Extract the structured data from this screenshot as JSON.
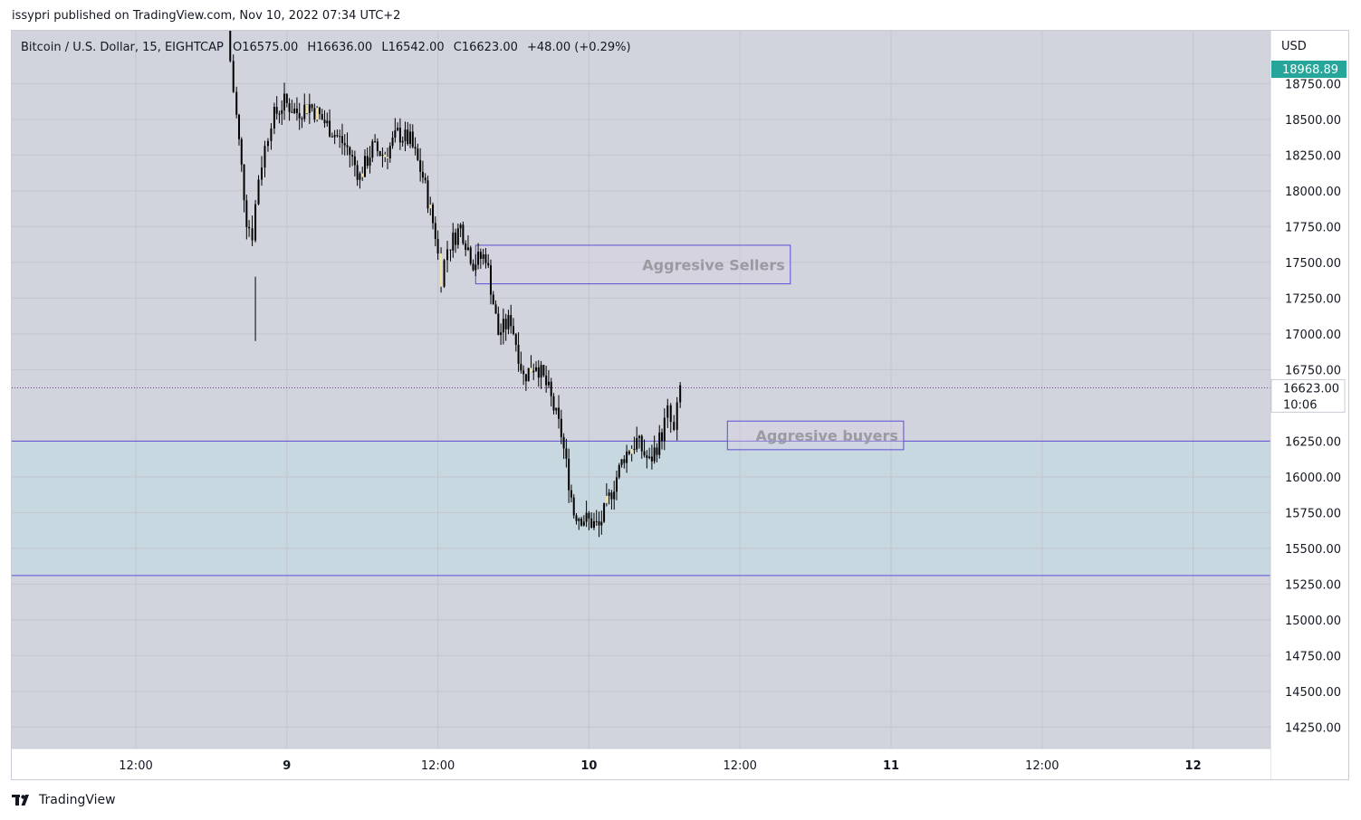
{
  "header": {
    "published": "issypri published on TradingView.com, Nov 10, 2022 07:34 UTC+2"
  },
  "legend": {
    "symbol": "Bitcoin / U.S. Dollar, 15, EIGHTCAP",
    "open": "O16575.00",
    "high": "H16636.00",
    "low": "L16542.00",
    "close": "C16623.00",
    "change": "+48.00 (+0.29%)"
  },
  "price_axis": {
    "currency": "USD",
    "top_badge": "18968.89",
    "last_price": "16623.00",
    "countdown": "10:06"
  },
  "footer": {
    "brand": "TradingView"
  },
  "colors": {
    "background": "#d1d4dc",
    "zone_fill": "#c8d8e0",
    "zone_line": "#5b4fd6",
    "badge_green": "#26a69a",
    "candle": "#000000",
    "highlight": "#f3e39a"
  },
  "chart_data": {
    "type": "candlestick",
    "x_ticks": [
      "12:00",
      "9",
      "12:00",
      "10",
      "12:00",
      "11",
      "12:00",
      "12"
    ],
    "y_ticks": [
      18750,
      18500,
      18250,
      18000,
      17750,
      17500,
      17250,
      17000,
      16750,
      16250,
      16000,
      15750,
      15500,
      15250,
      15000,
      14750,
      14500,
      14250
    ],
    "ylim": [
      14100,
      19120
    ],
    "last_price": 16623,
    "zones": [
      {
        "label": "Aggresive Sellers",
        "price_top": 17620,
        "price_bottom": 17350,
        "time_start": "Nov 9 15:00",
        "time_end": "Nov 10 16:00"
      },
      {
        "label": "Aggresive buyers",
        "price_top": 16390,
        "price_bottom": 16190,
        "time_start": "Nov 10 11:00",
        "time_end": "Nov 11 01:00"
      }
    ],
    "horizontal_levels": [
      16250,
      15310
    ],
    "support_band": {
      "top": 16250,
      "bottom": 15310
    },
    "price_path": [
      [
        "Nov 8 19:30",
        19120
      ],
      [
        "Nov 8 20:00",
        18700
      ],
      [
        "Nov 8 21:00",
        17800
      ],
      [
        "Nov 8 21:30",
        17700
      ],
      [
        "Nov 8 22:00",
        18100
      ],
      [
        "Nov 8 22:30",
        18300
      ],
      [
        "Nov 8 23:00",
        18500
      ],
      [
        "Nov 9 00:00",
        18620
      ],
      [
        "Nov 9 01:00",
        18550
      ],
      [
        "Nov 9 02:00",
        18600
      ],
      [
        "Nov 9 03:00",
        18500
      ],
      [
        "Nov 9 04:00",
        18400
      ],
      [
        "Nov 9 05:00",
        18300
      ],
      [
        "Nov 9 06:00",
        18100
      ],
      [
        "Nov 9 07:00",
        18300
      ],
      [
        "Nov 9 08:00",
        18250
      ],
      [
        "Nov 9 09:00",
        18400
      ],
      [
        "Nov 9 10:00",
        18350
      ],
      [
        "Nov 9 11:00",
        18100
      ],
      [
        "Nov 9 12:00",
        17700
      ],
      [
        "Nov 9 12:30",
        17400
      ],
      [
        "Nov 9 13:00",
        17600
      ],
      [
        "Nov 9 14:00",
        17750
      ],
      [
        "Nov 9 15:00",
        17500
      ],
      [
        "Nov 9 16:00",
        17550
      ],
      [
        "Nov 9 17:00",
        17000
      ],
      [
        "Nov 9 18:00",
        17100
      ],
      [
        "Nov 9 19:00",
        16700
      ],
      [
        "Nov 9 20:00",
        16800
      ],
      [
        "Nov 9 21:00",
        16600
      ],
      [
        "Nov 9 22:00",
        16300
      ],
      [
        "Nov 9 23:00",
        15750
      ],
      [
        "Nov 10 00:00",
        15700
      ],
      [
        "Nov 10 01:00",
        15650
      ],
      [
        "Nov 10 02:00",
        15900
      ],
      [
        "Nov 10 03:00",
        16150
      ],
      [
        "Nov 10 04:00",
        16250
      ],
      [
        "Nov 10 05:00",
        16100
      ],
      [
        "Nov 10 06:00",
        16300
      ],
      [
        "Nov 10 06:30",
        16450
      ],
      [
        "Nov 10 07:00",
        16300
      ],
      [
        "Nov 10 07:30",
        16623
      ]
    ]
  }
}
